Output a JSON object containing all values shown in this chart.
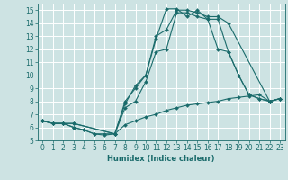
{
  "xlabel": "Humidex (Indice chaleur)",
  "xlim": [
    -0.5,
    23.5
  ],
  "ylim": [
    5,
    15.5
  ],
  "yticks": [
    5,
    6,
    7,
    8,
    9,
    10,
    11,
    12,
    13,
    14,
    15
  ],
  "xticks": [
    0,
    1,
    2,
    3,
    4,
    5,
    6,
    7,
    8,
    9,
    10,
    11,
    12,
    13,
    14,
    15,
    16,
    17,
    18,
    19,
    20,
    21,
    22,
    23
  ],
  "bg_color": "#cde3e3",
  "line_color": "#1a6b6b",
  "grid_color": "#ffffff",
  "series": [
    {
      "x": [
        0,
        1,
        2,
        3,
        7,
        8,
        9,
        10,
        11,
        12,
        13,
        14,
        15,
        16,
        17,
        18,
        22,
        23
      ],
      "y": [
        6.5,
        6.3,
        6.3,
        6.3,
        5.5,
        7.8,
        9.2,
        10.0,
        13.0,
        13.5,
        15.0,
        15.0,
        14.8,
        14.5,
        14.5,
        14.0,
        8.0,
        8.2
      ]
    },
    {
      "x": [
        0,
        1,
        2,
        3,
        7,
        8,
        9,
        10,
        11,
        12,
        13,
        14,
        15,
        16,
        17,
        18,
        19,
        20,
        21,
        22,
        23
      ],
      "y": [
        6.5,
        6.3,
        6.3,
        6.3,
        5.5,
        8.0,
        9.0,
        10.0,
        12.8,
        15.1,
        15.1,
        14.5,
        15.0,
        14.3,
        12.0,
        11.8,
        10.0,
        8.5,
        8.2,
        8.0,
        8.2
      ]
    },
    {
      "x": [
        0,
        1,
        2,
        3,
        4,
        5,
        6,
        7,
        8,
        9,
        10,
        11,
        12,
        13,
        14,
        15,
        16,
        17,
        18,
        19,
        20,
        21,
        22,
        23
      ],
      "y": [
        6.5,
        6.3,
        6.3,
        6.0,
        5.8,
        5.5,
        5.5,
        5.5,
        6.2,
        6.5,
        6.8,
        7.0,
        7.3,
        7.5,
        7.7,
        7.8,
        7.9,
        8.0,
        8.2,
        8.3,
        8.4,
        8.5,
        8.0,
        8.2
      ]
    },
    {
      "x": [
        0,
        1,
        2,
        3,
        4,
        5,
        6,
        7,
        8,
        9,
        10,
        11,
        12,
        13,
        14,
        15,
        16,
        17,
        18,
        19,
        20,
        21,
        22,
        23
      ],
      "y": [
        6.5,
        6.3,
        6.3,
        6.0,
        5.8,
        5.5,
        5.4,
        5.5,
        7.5,
        8.0,
        9.5,
        11.8,
        12.0,
        14.8,
        14.8,
        14.5,
        14.3,
        14.3,
        11.8,
        10.0,
        8.5,
        8.2,
        8.0,
        8.2
      ]
    }
  ]
}
